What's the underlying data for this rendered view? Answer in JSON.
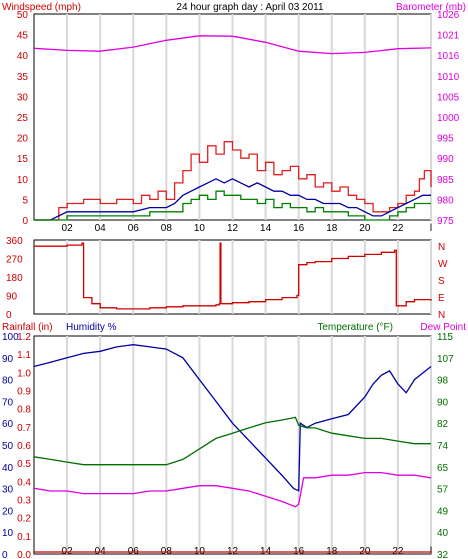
{
  "colors": {
    "wind": "#d00000",
    "gust": "#e02020",
    "avg": "#008000",
    "baro": "#e000e0",
    "humidity": "#0000a0",
    "temperature": "#007000",
    "dewpoint": "#e000e0",
    "rain": "#d00000",
    "grid": "#d8d8d8",
    "axis": "#000000"
  },
  "chart_data": [
    {
      "type": "line",
      "title": "24 hour graph day : April 03 2011",
      "ylabel_left": "Windspeed (mph)",
      "ylabel_right": "Barometer (mb)",
      "x_ticks": [
        "02",
        "04",
        "06",
        "08",
        "10",
        "12",
        "14",
        "16",
        "18",
        "20",
        "22",
        "l"
      ],
      "y_left_ticks": [
        "0",
        "5",
        "10",
        "15",
        "20",
        "25",
        "30",
        "35",
        "40",
        "45",
        "50"
      ],
      "y_right_ticks": [
        "975",
        "980",
        "985",
        "990",
        "995",
        "1000",
        "1005",
        "1010",
        "1016",
        "1021",
        "1026"
      ],
      "ylim_left": [
        0,
        50
      ],
      "ylim_right": [
        975,
        1026
      ],
      "x_range_hours": [
        0,
        24
      ],
      "grid": true,
      "series": [
        {
          "key": "gust",
          "x": [
            0,
            1,
            1.5,
            2,
            3,
            4,
            5,
            6,
            6.5,
            7,
            7.5,
            8,
            8.5,
            9,
            9.5,
            10,
            10.5,
            11,
            11.5,
            12,
            12.5,
            13,
            13.5,
            14,
            14.5,
            15,
            15.5,
            16,
            16.5,
            17,
            17.5,
            18,
            18.5,
            19,
            19.5,
            20,
            20.5,
            21,
            21.5,
            22,
            22.5,
            23,
            23.3,
            23.6,
            24
          ],
          "values": [
            0,
            0,
            3,
            4,
            5,
            4,
            5,
            4,
            6,
            5,
            7,
            5,
            9,
            12,
            16,
            14,
            18,
            16,
            19,
            17,
            15,
            16,
            12,
            14,
            11,
            12,
            13,
            10,
            11,
            8,
            9,
            7,
            8,
            6,
            5,
            4,
            2,
            2,
            3,
            4,
            6,
            7,
            10,
            12,
            8
          ]
        },
        {
          "key": "wind",
          "x": [
            0,
            1,
            2,
            3,
            4,
            5,
            6,
            7,
            8,
            8.5,
            9,
            9.5,
            10,
            10.5,
            11,
            11.5,
            12,
            12.5,
            13,
            13.5,
            14,
            14.5,
            15,
            15.5,
            16,
            16.5,
            17,
            17.5,
            18,
            18.5,
            19,
            19.5,
            20,
            20.5,
            21,
            21.5,
            22,
            22.5,
            23,
            23.5,
            24
          ],
          "values": [
            0,
            0,
            2,
            2,
            2,
            2,
            2,
            3,
            3,
            4,
            6,
            7,
            8,
            9,
            10,
            9,
            10,
            9,
            8,
            9,
            8,
            7,
            7,
            6,
            6,
            5,
            5,
            4,
            4,
            4,
            3,
            3,
            2,
            1,
            1,
            2,
            3,
            4,
            5,
            6,
            6
          ]
        },
        {
          "key": "avg",
          "x": [
            0,
            1,
            2,
            3,
            4,
            5,
            6,
            7,
            8,
            8.5,
            9,
            9.5,
            10,
            10.5,
            11,
            11.5,
            12,
            12.5,
            13,
            13.5,
            14,
            14.5,
            15,
            15.5,
            16,
            16.5,
            17,
            17.5,
            18,
            18.5,
            19,
            19.5,
            20,
            20.5,
            21,
            21.5,
            22,
            22.5,
            23,
            23.5,
            24
          ],
          "values": [
            0,
            0,
            1,
            1,
            1,
            1,
            1,
            2,
            2,
            2,
            4,
            5,
            6,
            5,
            7,
            6,
            6,
            5,
            5,
            4,
            5,
            3,
            4,
            3,
            3,
            2,
            3,
            2,
            2,
            2,
            1,
            1,
            0,
            0,
            0,
            1,
            2,
            3,
            4,
            4,
            4
          ]
        },
        {
          "key": "baro",
          "axis": "right",
          "x": [
            0,
            2,
            4,
            6,
            8,
            10,
            12,
            14,
            16,
            18,
            20,
            22,
            24
          ],
          "values": [
            1017.5,
            1017.0,
            1016.8,
            1017.8,
            1019.5,
            1020.6,
            1020.5,
            1019.0,
            1016.8,
            1016.2,
            1016.5,
            1017.4,
            1017.6
          ]
        }
      ]
    },
    {
      "type": "line",
      "ylabel_right": "N W S E N",
      "y_left_ticks": [
        "0",
        "90",
        "180",
        "270",
        "360"
      ],
      "y_right_letters": [
        "N",
        "W",
        "S",
        "E",
        "N"
      ],
      "ylim": [
        0,
        360
      ],
      "series": [
        {
          "key": "direction",
          "x": [
            0,
            2,
            2.9,
            3.0,
            3.5,
            4,
            5,
            6,
            7,
            8,
            9,
            10,
            11,
            11.2,
            11.25,
            11.3,
            12,
            13,
            14,
            15,
            15.9,
            16.0,
            16.5,
            17,
            18,
            19,
            20,
            21,
            21.8,
            21.9,
            22.5,
            23,
            24
          ],
          "values": [
            330,
            335,
            345,
            80,
            50,
            30,
            25,
            25,
            30,
            35,
            40,
            40,
            45,
            50,
            345,
            50,
            55,
            60,
            70,
            80,
            90,
            240,
            250,
            255,
            270,
            280,
            290,
            300,
            310,
            40,
            60,
            70,
            65
          ]
        }
      ]
    },
    {
      "type": "line",
      "ylabel_left": "Rainfall (in)",
      "ylabel_humidity": "Humidity %",
      "ylabel_right": "Temperature (°F)",
      "ylabel_right2": "Dew Point",
      "rain_ticks": [
        "0.0",
        "0.1",
        "0.2",
        "0.3",
        "0.4",
        "0.5",
        "0.6",
        "0.7",
        "0.8",
        "0.9",
        "1.0",
        "1.1",
        "1.2"
      ],
      "humidity_ticks": [
        "0",
        "10",
        "20",
        "30",
        "40",
        "50",
        "60",
        "70",
        "80",
        "90",
        "100"
      ],
      "temp_ticks": [
        "32",
        "40",
        "49",
        "57",
        "65",
        "74",
        "82",
        "90",
        "98",
        "107",
        "115"
      ],
      "ylim_humidity": [
        0,
        100
      ],
      "ylim_temp": [
        32,
        115
      ],
      "series": [
        {
          "key": "humidity",
          "x": [
            0,
            1,
            2,
            3,
            4,
            5,
            6,
            7,
            8,
            9,
            10,
            11,
            12,
            13,
            14,
            15,
            15.7,
            16.0,
            16.1,
            16.5,
            17,
            18,
            19,
            20,
            20.5,
            21,
            21.5,
            22,
            22.5,
            23,
            24
          ],
          "values": [
            86,
            88,
            90,
            92,
            93,
            95,
            96,
            95,
            94,
            90,
            80,
            70,
            60,
            52,
            44,
            36,
            30,
            29,
            60,
            58,
            60,
            62,
            64,
            72,
            78,
            82,
            84,
            78,
            74,
            80,
            86
          ]
        },
        {
          "key": "temperature",
          "x": [
            0,
            1,
            2,
            3,
            4,
            5,
            6,
            7,
            8,
            9,
            10,
            11,
            12,
            13,
            14,
            15,
            15.8,
            16.0,
            16.5,
            17,
            18,
            19,
            20,
            21,
            22,
            23,
            24
          ],
          "values": [
            69,
            68,
            67,
            66,
            66,
            66,
            66,
            66,
            66,
            68,
            72,
            76,
            78,
            80,
            82,
            83,
            84,
            81,
            80,
            80,
            78,
            77,
            76,
            76,
            75,
            74,
            74
          ]
        },
        {
          "key": "dewpoint",
          "x": [
            0,
            1,
            2,
            3,
            4,
            5,
            6,
            7,
            8,
            9,
            10,
            11,
            12,
            13,
            14,
            15,
            15.8,
            16.0,
            16.3,
            17,
            18,
            19,
            20,
            21,
            22,
            23,
            24
          ],
          "values": [
            57,
            56,
            56,
            55,
            55,
            55,
            55,
            56,
            56,
            57,
            58,
            58,
            57,
            56,
            54,
            52,
            50,
            51,
            61,
            61,
            62,
            62,
            63,
            63,
            62,
            62,
            61
          ]
        },
        {
          "key": "rain",
          "x": [
            0,
            24
          ],
          "values": [
            0,
            0
          ]
        }
      ]
    }
  ]
}
